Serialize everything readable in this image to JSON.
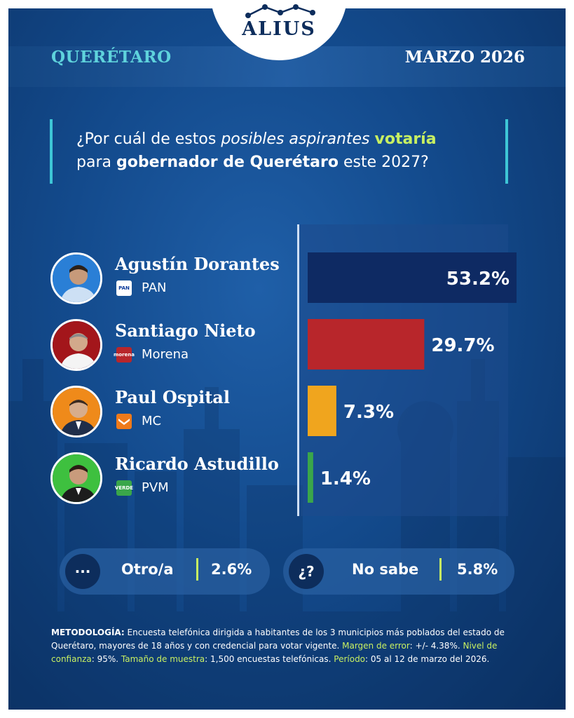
{
  "brand": "ALIUS",
  "header": {
    "location": "QUERÉTARO",
    "date": "MARZO 2026"
  },
  "question": {
    "p1": "¿Por cuál de estos ",
    "p2": "posibles aspirantes",
    "p3": " ",
    "p4": "votaría",
    "p5": "para ",
    "p6": "gobernador de Querétaro",
    "p7": " este 2027?"
  },
  "chart_data": {
    "type": "bar",
    "orientation": "horizontal",
    "categories": [
      "Agustín Dorantes",
      "Santiago Nieto",
      "Paul Ospital",
      "Ricardo Astudillo"
    ],
    "parties": [
      "PAN",
      "Morena",
      "MC",
      "PVM"
    ],
    "values": [
      53.2,
      29.7,
      7.3,
      1.4
    ],
    "value_labels": [
      "53.2%",
      "29.7%",
      "7.3%",
      "1.4%"
    ],
    "colors": [
      "#0e2a63",
      "#b8262b",
      "#f0a51e",
      "#3aa64a"
    ],
    "xlim": [
      0,
      53.2
    ],
    "grid": false,
    "legend": "none"
  },
  "party_logos": {
    "pan": "PAN",
    "morena": "morena",
    "verde": "VERDE"
  },
  "others": [
    {
      "icon": "···",
      "label": "Otro/a",
      "value": "2.6%"
    },
    {
      "icon": "¿?",
      "label": "No sabe",
      "value": "5.8%"
    }
  ],
  "methodology": {
    "t1": "METODOLOGÍA:",
    "t2": " Encuesta telefónica dirigida a habitantes de los 3 municipios más poblados del estado de Querétaro, mayores de 18 años y con credencial para votar vigente. ",
    "t3": "Margen de error",
    "t4": ": +/- 4.38%. ",
    "t5": "Nivel de confianza",
    "t6": ": 95%. ",
    "t7": "Tamaño de muestra",
    "t8": ": 1,500 encuestas telefónicas. ",
    "t9": "Período",
    "t10": ": 05 al 12 de marzo del 2026."
  }
}
